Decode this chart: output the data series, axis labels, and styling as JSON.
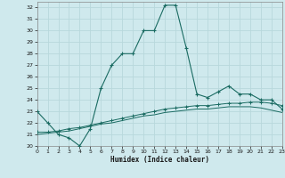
{
  "xlabel": "Humidex (Indice chaleur)",
  "bg_color": "#cfe9ed",
  "line_color": "#1a6b62",
  "grid_color": "#b8d8dc",
  "xlim": [
    0,
    23
  ],
  "ylim": [
    20,
    32.5
  ],
  "yticks": [
    20,
    21,
    22,
    23,
    24,
    25,
    26,
    27,
    28,
    29,
    30,
    31,
    32
  ],
  "xticks": [
    0,
    1,
    2,
    3,
    4,
    5,
    6,
    7,
    8,
    9,
    10,
    11,
    12,
    13,
    14,
    15,
    16,
    17,
    18,
    19,
    20,
    21,
    22,
    23
  ],
  "series1_x": [
    0,
    1,
    2,
    3,
    4,
    5,
    6,
    7,
    8,
    9,
    10,
    11,
    12,
    13,
    14,
    15,
    16,
    17,
    18,
    19,
    20,
    21,
    22,
    23
  ],
  "series1_y": [
    23.0,
    22.0,
    21.0,
    20.7,
    20.0,
    21.5,
    25.0,
    27.0,
    28.0,
    28.0,
    30.0,
    30.0,
    32.2,
    32.2,
    28.5,
    24.5,
    24.2,
    24.7,
    25.2,
    24.5,
    24.5,
    24.0,
    24.0,
    23.2
  ],
  "series2_x": [
    0,
    1,
    2,
    3,
    4,
    5,
    6,
    7,
    8,
    9,
    10,
    11,
    12,
    13,
    14,
    15,
    16,
    17,
    18,
    19,
    20,
    21,
    22,
    23
  ],
  "series2_y": [
    21.2,
    21.2,
    21.3,
    21.5,
    21.6,
    21.8,
    22.0,
    22.2,
    22.4,
    22.6,
    22.8,
    23.0,
    23.2,
    23.3,
    23.4,
    23.5,
    23.5,
    23.6,
    23.7,
    23.7,
    23.8,
    23.8,
    23.7,
    23.5
  ],
  "series3_x": [
    0,
    1,
    2,
    3,
    4,
    5,
    6,
    7,
    8,
    9,
    10,
    11,
    12,
    13,
    14,
    15,
    16,
    17,
    18,
    19,
    20,
    21,
    22,
    23
  ],
  "series3_y": [
    21.0,
    21.1,
    21.2,
    21.3,
    21.5,
    21.7,
    21.9,
    22.0,
    22.2,
    22.4,
    22.6,
    22.7,
    22.9,
    23.0,
    23.1,
    23.2,
    23.2,
    23.3,
    23.4,
    23.4,
    23.4,
    23.3,
    23.1,
    22.9
  ]
}
